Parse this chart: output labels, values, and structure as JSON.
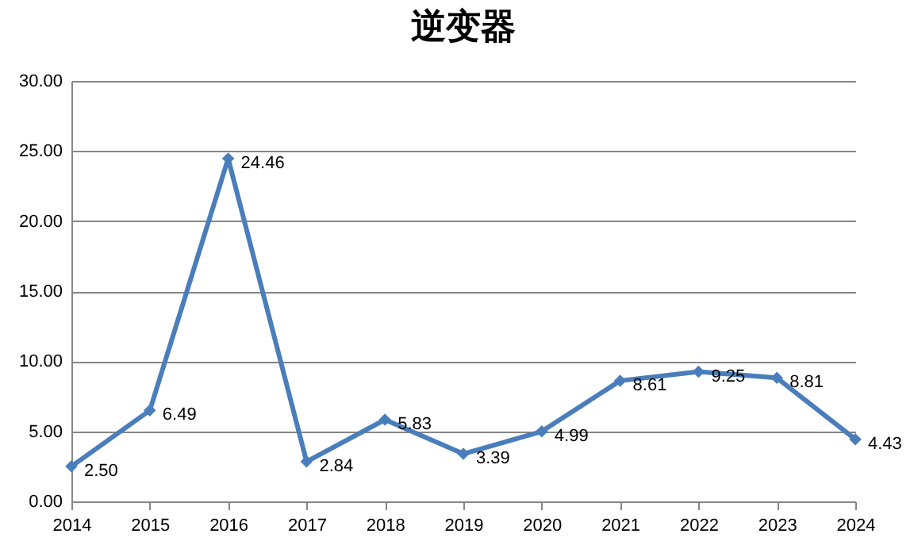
{
  "chart_data": {
    "type": "line",
    "title": "逆变器",
    "categories": [
      "2014",
      "2015",
      "2016",
      "2017",
      "2018",
      "2019",
      "2020",
      "2021",
      "2022",
      "2023",
      "2024"
    ],
    "series": [
      {
        "color": "#4a7ebb",
        "values": [
          2.5,
          6.49,
          24.46,
          2.84,
          5.83,
          3.39,
          4.99,
          8.61,
          9.25,
          8.81,
          4.43
        ],
        "value_labels": [
          "2.50",
          "6.49",
          "24.46",
          "2.84",
          "5.83",
          "3.39",
          "4.99",
          "8.61",
          "9.25",
          "8.81",
          "4.43"
        ]
      }
    ],
    "ylim": [
      0,
      30
    ],
    "yticks": [
      {
        "value": 0,
        "label": "0.00"
      },
      {
        "value": 5,
        "label": "5.00"
      },
      {
        "value": 10,
        "label": "10.00"
      },
      {
        "value": 15,
        "label": "15.00"
      },
      {
        "value": 20,
        "label": "20.00"
      },
      {
        "value": 25,
        "label": "25.00"
      },
      {
        "value": 30,
        "label": "30.00"
      }
    ],
    "grid": "y",
    "marker": "diamond",
    "line_style": "solid"
  }
}
